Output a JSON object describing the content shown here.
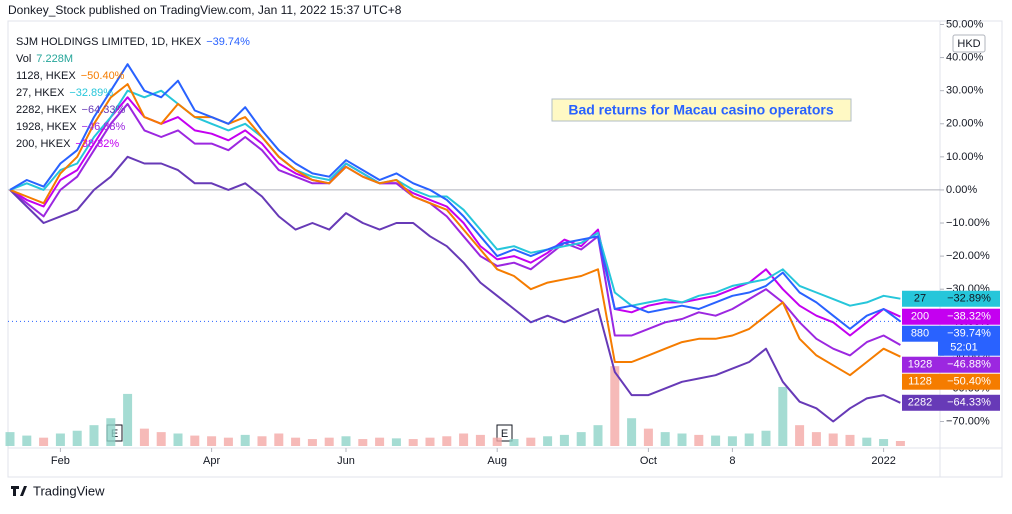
{
  "header": {
    "publisher": "Donkey_Stock published on TradingView.com, Jan 11, 2022 15:37 UTC+8"
  },
  "footer": {
    "brand": "TradingView"
  },
  "chart_data": {
    "type": "line",
    "currency": "HKD",
    "annotation": "Bad returns for Macau casino operators",
    "countdown": "52:01",
    "events": [
      "E",
      "E"
    ],
    "categories": [
      null,
      null,
      null,
      "Feb",
      null,
      null,
      null,
      null,
      null,
      null,
      null,
      null,
      "Apr",
      null,
      null,
      null,
      null,
      null,
      null,
      null,
      "Jun",
      null,
      null,
      null,
      null,
      null,
      null,
      null,
      null,
      "Aug",
      null,
      null,
      null,
      null,
      null,
      null,
      null,
      null,
      "Oct",
      null,
      null,
      null,
      null,
      "8",
      null,
      null,
      null,
      null,
      null,
      null,
      null,
      null,
      "2022",
      null
    ],
    "ylim": [
      -78,
      50
    ],
    "yticks": [
      {
        "value": 50,
        "label": "50.00%"
      },
      {
        "value": 40,
        "label": "40.00%"
      },
      {
        "value": 30,
        "label": "30.00%"
      },
      {
        "value": 20,
        "label": "20.00%"
      },
      {
        "value": 10,
        "label": "10.00%"
      },
      {
        "value": 0,
        "label": "0.00%"
      },
      {
        "value": -10,
        "label": "−10.00%"
      },
      {
        "value": -20,
        "label": "−20.00%"
      },
      {
        "value": -30,
        "label": "−30.00%"
      },
      {
        "value": -40,
        "label": "−40.00%"
      },
      {
        "value": -50,
        "label": "−50.00%"
      },
      {
        "value": -60,
        "label": "−60.00%"
      },
      {
        "value": -70,
        "label": "−70.00%"
      }
    ],
    "series": [
      {
        "name": "SJM HOLDINGS LIMITED, 1D, HKEX",
        "tag": "880",
        "last_label": "−39.74%",
        "color": "#2962ff",
        "values": [
          0,
          3,
          1,
          8,
          12,
          22,
          30,
          38,
          30,
          28,
          33,
          24,
          22,
          20,
          25,
          18,
          12,
          8,
          5,
          4,
          9,
          6,
          3,
          5,
          2,
          0,
          -3,
          -8,
          -14,
          -20,
          -18,
          -20,
          -18,
          -16,
          -15,
          -14,
          -36,
          -35,
          -37,
          -36,
          -35,
          -36,
          -34,
          -32,
          -31,
          -29,
          -25,
          -31,
          -34,
          -38,
          -42,
          -38,
          -36,
          -39.74
        ]
      },
      {
        "name": "1128, HKEX",
        "tag": "1128",
        "last_label": "−50.40%",
        "color": "#f57c00",
        "values": [
          0,
          -2,
          -4,
          5,
          10,
          20,
          28,
          32,
          22,
          20,
          26,
          22,
          22,
          20,
          22,
          16,
          10,
          6,
          3,
          2,
          7,
          4,
          2,
          3,
          -2,
          -4,
          -6,
          -12,
          -18,
          -24,
          -26,
          -30,
          -28,
          -27,
          -26,
          -24,
          -52,
          -52,
          -50,
          -48,
          -46,
          -45,
          -45,
          -44,
          -42,
          -38,
          -34,
          -45,
          -50,
          -53,
          -56,
          -52,
          -48,
          -50.4
        ]
      },
      {
        "name": "27, HKEX",
        "tag": "27",
        "last_label": "−32.89%",
        "color": "#26c6da",
        "values": [
          0,
          2,
          0,
          6,
          8,
          16,
          22,
          30,
          28,
          30,
          26,
          22,
          20,
          18,
          20,
          16,
          10,
          6,
          4,
          3,
          8,
          5,
          2,
          3,
          0,
          -2,
          -2,
          -6,
          -12,
          -18,
          -17,
          -19,
          -18,
          -17,
          -16,
          -13,
          -31,
          -35,
          -34,
          -33,
          -34,
          -32,
          -31,
          -29,
          -28,
          -27,
          -24,
          -29,
          -31,
          -33,
          -35,
          -34,
          -32,
          -32.89
        ]
      },
      {
        "name": "2282, HKEX",
        "tag": "2282",
        "last_label": "−64.33%",
        "color": "#673ab7",
        "values": [
          0,
          -5,
          -10,
          -8,
          -6,
          0,
          4,
          10,
          8,
          8,
          6,
          2,
          2,
          0,
          2,
          -2,
          -8,
          -12,
          -10,
          -12,
          -7,
          -10,
          -12,
          -10,
          -10,
          -14,
          -17,
          -22,
          -28,
          -32,
          -36,
          -40,
          -38,
          -40,
          -38,
          -36,
          -55,
          -62,
          -62,
          -60,
          -58,
          -57,
          -56,
          -54,
          -52,
          -48,
          -58,
          -64,
          -66,
          -70,
          -66,
          -63,
          -62,
          -64.33
        ]
      },
      {
        "name": "1928, HKEX",
        "tag": "1928",
        "last_label": "−46.88%",
        "color": "#9c27e0",
        "values": [
          0,
          -4,
          -8,
          0,
          4,
          12,
          20,
          26,
          18,
          16,
          18,
          14,
          14,
          12,
          16,
          12,
          6,
          4,
          2,
          2,
          7,
          4,
          2,
          2,
          -2,
          -4,
          -8,
          -14,
          -20,
          -23,
          -22,
          -24,
          -20,
          -16,
          -18,
          -14,
          -44,
          -44,
          -42,
          -40,
          -39,
          -37,
          -38,
          -36,
          -33,
          -30,
          -34,
          -40,
          -45,
          -48,
          -50,
          -46,
          -44,
          -46.88
        ]
      },
      {
        "name": "200, HKEX",
        "tag": "200",
        "last_label": "−38.32%",
        "color": "#c400f0",
        "values": [
          0,
          -3,
          -5,
          3,
          6,
          14,
          22,
          28,
          22,
          20,
          22,
          18,
          17,
          15,
          18,
          14,
          8,
          5,
          3,
          2,
          8,
          5,
          2,
          2,
          -1,
          -3,
          -5,
          -10,
          -17,
          -21,
          -20,
          -22,
          -19,
          -15,
          -17,
          -12,
          -36,
          -37,
          -35,
          -34,
          -34,
          -33,
          -32,
          -30,
          -28,
          -24,
          -30,
          -35,
          -38,
          -40,
          -44,
          -40,
          -36,
          -38.32
        ]
      }
    ],
    "volume": {
      "name": "Vol",
      "last_label": "7.228M",
      "ylim": [
        0,
        180
      ],
      "up_color": "#8fd3c8",
      "down_color": "#f4a9a6",
      "values": [
        20,
        15,
        12,
        18,
        22,
        30,
        40,
        75,
        25,
        20,
        18,
        15,
        14,
        12,
        16,
        14,
        18,
        12,
        10,
        12,
        14,
        10,
        12,
        11,
        10,
        12,
        14,
        18,
        16,
        12,
        10,
        12,
        14,
        16,
        20,
        30,
        115,
        40,
        25,
        20,
        18,
        16,
        15,
        14,
        18,
        22,
        85,
        30,
        20,
        18,
        16,
        12,
        10,
        7.228
      ]
    }
  }
}
